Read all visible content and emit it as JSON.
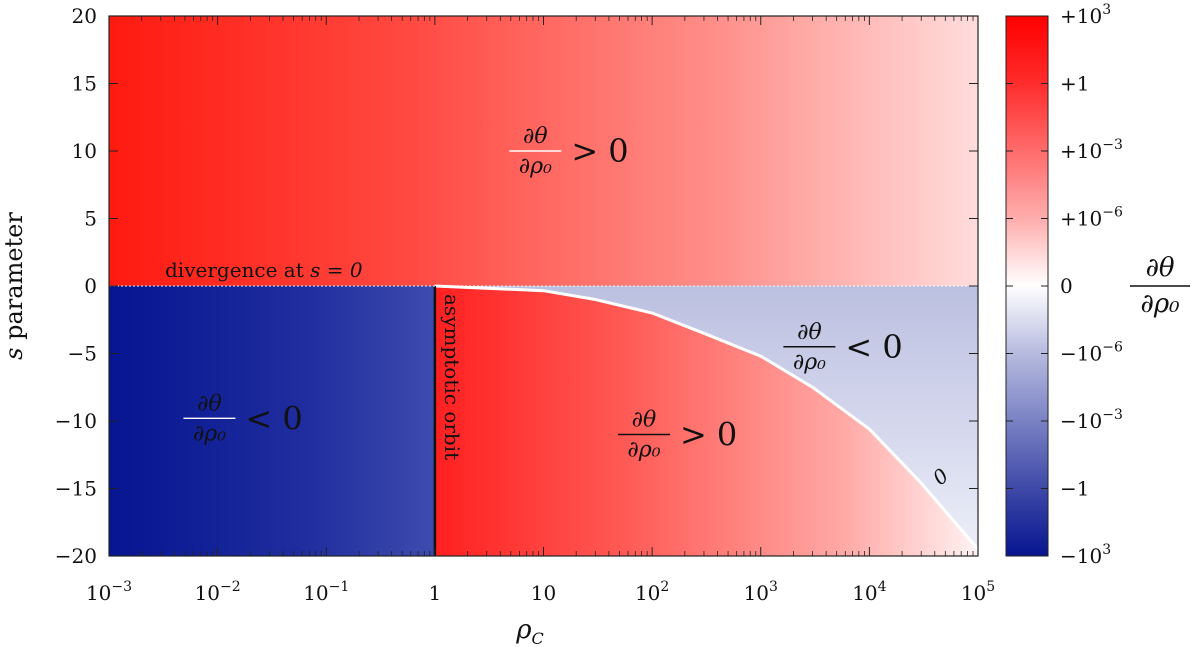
{
  "chart_data": {
    "type": "heatmap",
    "xscale": "log",
    "xlim": [
      0.001,
      100000
    ],
    "ylim": [
      -20,
      20
    ],
    "xlabel": "ρ_C",
    "ylabel": "s parameter",
    "x_ticks": [
      {
        "value": 0.001,
        "base": "10",
        "exp": "−3"
      },
      {
        "value": 0.01,
        "base": "10",
        "exp": "−2"
      },
      {
        "value": 0.1,
        "base": "10",
        "exp": "−1"
      },
      {
        "value": 1,
        "base": "1",
        "exp": ""
      },
      {
        "value": 10,
        "base": "10",
        "exp": ""
      },
      {
        "value": 100,
        "base": "10",
        "exp": "2"
      },
      {
        "value": 1000,
        "base": "10",
        "exp": "3"
      },
      {
        "value": 10000,
        "base": "10",
        "exp": "4"
      },
      {
        "value": 100000,
        "base": "10",
        "exp": "5"
      }
    ],
    "y_ticks": [
      {
        "value": 20,
        "label": "20"
      },
      {
        "value": 15,
        "label": "15"
      },
      {
        "value": 10,
        "label": "10"
      },
      {
        "value": 5,
        "label": "5"
      },
      {
        "value": 0,
        "label": "0"
      },
      {
        "value": -5,
        "label": "−5"
      },
      {
        "value": -10,
        "label": "−10"
      },
      {
        "value": -15,
        "label": "−15"
      },
      {
        "value": -20,
        "label": "−20"
      }
    ],
    "colorbar": {
      "label_num": "∂θ",
      "label_den": "∂ρ₀",
      "ticks": [
        {
          "value": 1000,
          "sign": "+",
          "base": "10",
          "exp": "3"
        },
        {
          "value": 1,
          "sign": "+",
          "base": "1",
          "exp": ""
        },
        {
          "value": 0.001,
          "sign": "+",
          "base": "10",
          "exp": "−3"
        },
        {
          "value": 1e-06,
          "sign": "+",
          "base": "10",
          "exp": "−6"
        },
        {
          "value": 0,
          "sign": "",
          "base": "0",
          "exp": ""
        },
        {
          "value": -1e-06,
          "sign": "−",
          "base": "10",
          "exp": "−6"
        },
        {
          "value": -0.001,
          "sign": "−",
          "base": "10",
          "exp": "−3"
        },
        {
          "value": -1,
          "sign": "−",
          "base": "1",
          "exp": ""
        },
        {
          "value": -1000,
          "sign": "−",
          "base": "10",
          "exp": "3"
        }
      ],
      "positive_color": "#ff0000",
      "zero_color": "#ffffff",
      "negative_color": "#00008b"
    },
    "regions": [
      {
        "name": "upper",
        "x": [
          0.001,
          100000
        ],
        "y": [
          0,
          20
        ],
        "sign": "positive"
      },
      {
        "name": "lower-left",
        "x": [
          0.001,
          1
        ],
        "y": [
          -20,
          0
        ],
        "sign": "negative"
      },
      {
        "name": "lower-middle",
        "x": [
          1,
          100000
        ],
        "y": [
          -20,
          0
        ],
        "sign": "positive",
        "bounded_by": "zero-boundary"
      },
      {
        "name": "lower-right",
        "x": [
          1,
          100000
        ],
        "y": [
          -20,
          0
        ],
        "sign": "negative",
        "bounded_by": "zero-boundary"
      }
    ],
    "zero_boundary": {
      "x": [
        1,
        10,
        30,
        100,
        300,
        1000,
        3000,
        10000,
        30000,
        100000
      ],
      "y": [
        0,
        -0.35,
        -1.0,
        -2.0,
        -3.5,
        -5.2,
        -7.5,
        -10.6,
        -14.6,
        -19.5
      ]
    },
    "annotations": [
      {
        "id": "upper",
        "num": "∂θ",
        "den": "∂ρ₀",
        "rel": "> 0",
        "x": 30,
        "y": 10,
        "color": "#ffffff"
      },
      {
        "id": "lower-left",
        "num": "∂θ",
        "den": "∂ρ₀",
        "rel": "< 0",
        "x": 0.03,
        "y": -9.8,
        "color": "#ffffff"
      },
      {
        "id": "lower-middle",
        "num": "∂θ",
        "den": "∂ρ₀",
        "rel": "> 0",
        "x": 300,
        "y": -11,
        "color": "#111111"
      },
      {
        "id": "lower-right",
        "num": "∂θ",
        "den": "∂ρ₀",
        "rel": "< 0",
        "x": 10000,
        "y": -4.5,
        "color": "#111111"
      }
    ],
    "labels": {
      "divergence_prefix": "divergence at ",
      "divergence_math": "s = 0",
      "asymptotic": "asymptotic orbit",
      "zero_mark": "0"
    }
  }
}
